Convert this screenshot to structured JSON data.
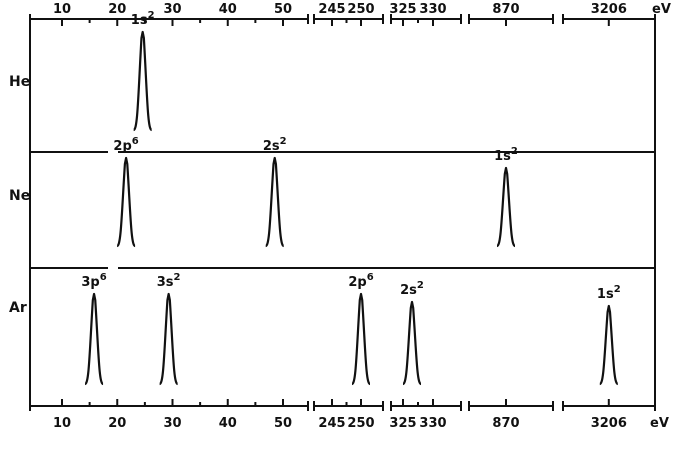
{
  "chart_data": {
    "type": "line",
    "unit": "eV",
    "axis_segments": [
      {
        "ticks": [
          10,
          20,
          30,
          40,
          50
        ]
      },
      {
        "ticks": [
          245,
          250
        ]
      },
      {
        "ticks": [
          325,
          330
        ]
      },
      {
        "ticks": [
          870
        ]
      },
      {
        "ticks": [
          3206
        ]
      }
    ],
    "top_tick_labels": [
      "10",
      "20",
      "30",
      "40",
      "50",
      "245",
      "250",
      "325",
      "330",
      "870",
      "3206"
    ],
    "bottom_tick_labels": [
      "10",
      "20",
      "30",
      "40",
      "50",
      "245",
      "250",
      "325",
      "330",
      "870",
      "3206"
    ],
    "panels": [
      {
        "element": "He",
        "peaks": [
          {
            "label_main": "1s",
            "label_sup": "2",
            "energy_ev": 24.6,
            "segment": 0
          }
        ]
      },
      {
        "element": "Ne",
        "peaks": [
          {
            "label_main": "2p",
            "label_sup": "6",
            "energy_ev": 21.6,
            "segment": 0
          },
          {
            "label_main": "2s",
            "label_sup": "2",
            "energy_ev": 48.5,
            "segment": 0
          },
          {
            "label_main": "1s",
            "label_sup": "2",
            "energy_ev": 870,
            "segment": 3
          }
        ]
      },
      {
        "element": "Ar",
        "peaks": [
          {
            "label_main": "3p",
            "label_sup": "6",
            "energy_ev": 15.8,
            "segment": 0
          },
          {
            "label_main": "3s",
            "label_sup": "2",
            "energy_ev": 29.3,
            "segment": 0
          },
          {
            "label_main": "2p",
            "label_sup": "6",
            "energy_ev": 250,
            "segment": 1
          },
          {
            "label_main": "2s",
            "label_sup": "2",
            "energy_ev": 326.5,
            "segment": 2
          },
          {
            "label_main": "1s",
            "label_sup": "2",
            "energy_ev": 3206,
            "segment": 4
          }
        ]
      }
    ],
    "top_unit_label": "eV",
    "bottom_unit_label": "eV",
    "grid": false,
    "legend": "none"
  }
}
